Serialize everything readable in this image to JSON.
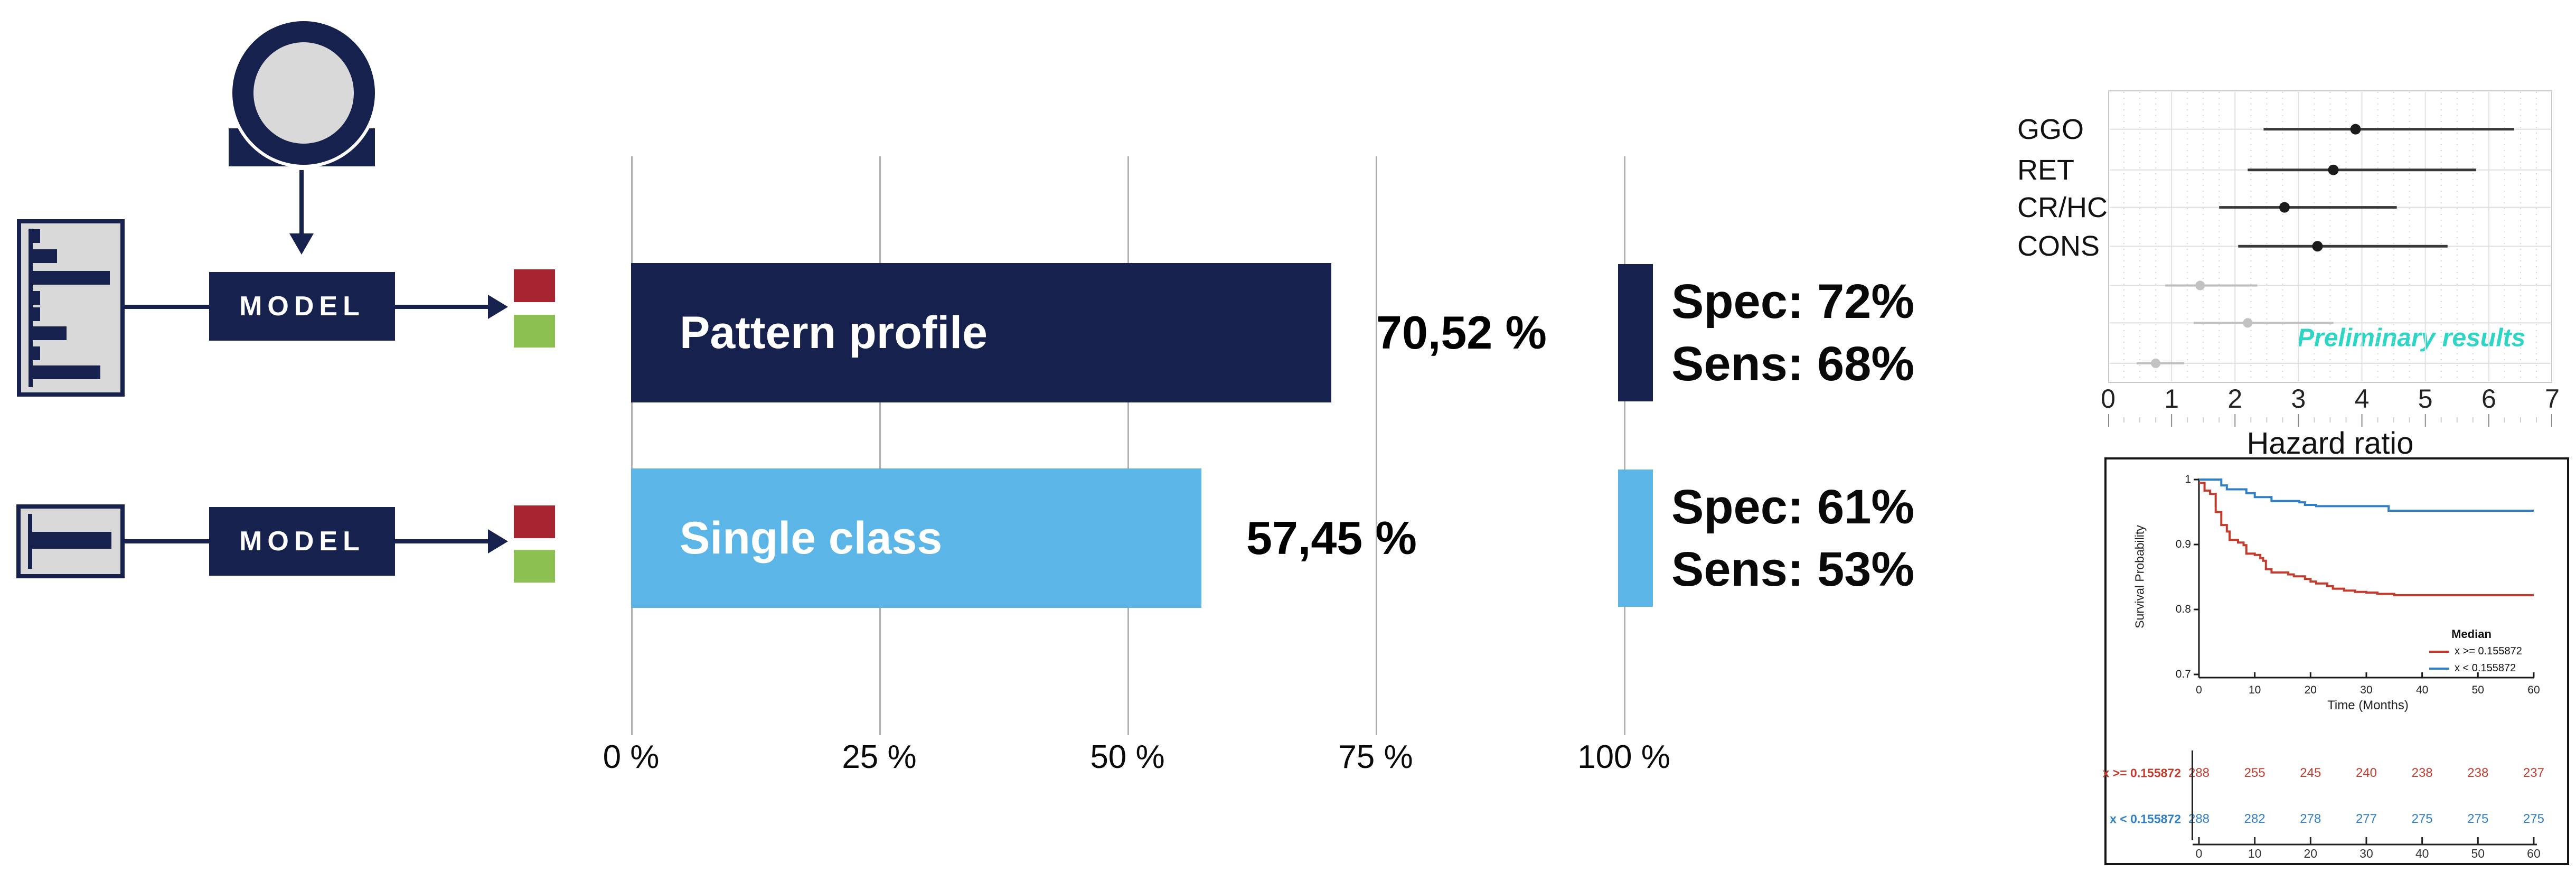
{
  "palette": {
    "navy": "#16214E",
    "icon_gray": "#D9D9D9",
    "bar_blue": "#5CB5E7",
    "class_red": "#A72430",
    "class_green": "#8CC152",
    "grid_gray": "#B0B0B0",
    "forest_black": "#383838",
    "forest_gray": "#BFBFBF",
    "km_red": "#C23B2C",
    "km_blue": "#2F7FC7",
    "watermark_cyan": "#2CD5C4"
  },
  "diagram": {
    "model_label": "MODEL",
    "histogram_icons": [
      {
        "bars": [
          [
            11,
            14
          ],
          [
            49,
            46
          ],
          [
            90,
            146
          ],
          [
            128,
            14
          ],
          [
            159,
            14
          ],
          [
            195,
            64
          ],
          [
            233,
            14
          ],
          [
            269,
            128
          ]
        ]
      },
      {
        "bars": [
          [
            44,
            150
          ]
        ]
      }
    ]
  },
  "chart_data": [
    {
      "type": "bar",
      "orientation": "horizontal",
      "title": "",
      "categories": [
        "Pattern profile",
        "Single class"
      ],
      "values": [
        70.52,
        57.45
      ],
      "value_labels": [
        "70,52 %",
        "57,45 %"
      ],
      "bar_colors": [
        "navy",
        "bar_blue"
      ],
      "stats": [
        {
          "spec": "Spec: 72%",
          "sens": "Sens: 68%"
        },
        {
          "spec": "Spec: 61%",
          "sens": "Sens: 53%"
        }
      ],
      "x_ticks": [
        "0 %",
        "25 %",
        "50 %",
        "75 %",
        "100 %"
      ],
      "xlim": [
        0,
        100
      ],
      "grid": true
    },
    {
      "type": "scatter",
      "subtype": "forest",
      "xlabel": "Hazard ratio",
      "xlim": [
        0,
        7
      ],
      "x_ticks": [
        "0",
        "1",
        "2",
        "3",
        "4",
        "5",
        "6",
        "7"
      ],
      "watermark": "Preliminary results",
      "rows": [
        {
          "label": "GGO",
          "est": 3.9,
          "lo": 2.45,
          "hi": 6.4,
          "tone": "black"
        },
        {
          "label": "RET",
          "est": 3.55,
          "lo": 2.2,
          "hi": 5.8,
          "tone": "black"
        },
        {
          "label": "CR/HC",
          "est": 2.78,
          "lo": 1.75,
          "hi": 4.55,
          "tone": "black"
        },
        {
          "label": "CONS",
          "est": 3.3,
          "lo": 2.05,
          "hi": 5.35,
          "tone": "black"
        },
        {
          "label": "",
          "est": 1.45,
          "lo": 0.9,
          "hi": 2.35,
          "tone": "gray"
        },
        {
          "label": "",
          "est": 2.2,
          "lo": 1.35,
          "hi": 3.55,
          "tone": "gray"
        },
        {
          "label": "",
          "est": 0.75,
          "lo": 0.45,
          "hi": 1.2,
          "tone": "gray"
        }
      ]
    },
    {
      "type": "line",
      "subtype": "kaplan-meier",
      "ylabel": "Survival Probability",
      "xlabel": "Time (Months)",
      "ylim": [
        0.7,
        1.0
      ],
      "xlim": [
        0,
        60
      ],
      "y_ticks": [
        "1",
        "0.9",
        "0.8",
        "0.7"
      ],
      "y_tick_values": [
        1.0,
        0.9,
        0.8,
        0.7
      ],
      "x_ticks": [
        "0",
        "10",
        "20",
        "30",
        "40",
        "50",
        "60"
      ],
      "x_tick_values": [
        0,
        10,
        20,
        30,
        40,
        50,
        60
      ],
      "legend": {
        "title": "Median",
        "entries": [
          {
            "label": "x >= 0.155872",
            "color": "km_red"
          },
          {
            "label": "x < 0.155872",
            "color": "km_blue"
          }
        ]
      },
      "series": [
        {
          "name": "x >= 0.155872",
          "color": "km_red",
          "points": [
            [
              0,
              0.995
            ],
            [
              1,
              0.983
            ],
            [
              2,
              0.978
            ],
            [
              3,
              0.95
            ],
            [
              4,
              0.93
            ],
            [
              5,
              0.92
            ],
            [
              5.5,
              0.907
            ],
            [
              7,
              0.903
            ],
            [
              8,
              0.899
            ],
            [
              8.5,
              0.886
            ],
            [
              10,
              0.884
            ],
            [
              11,
              0.879
            ],
            [
              11.5,
              0.875
            ],
            [
              12,
              0.862
            ],
            [
              13,
              0.857
            ],
            [
              16,
              0.854
            ],
            [
              17,
              0.851
            ],
            [
              19,
              0.847
            ],
            [
              20,
              0.843
            ],
            [
              21,
              0.84
            ],
            [
              23,
              0.836
            ],
            [
              24,
              0.832
            ],
            [
              26,
              0.829
            ],
            [
              28,
              0.827
            ],
            [
              30,
              0.826
            ],
            [
              32,
              0.824
            ],
            [
              35,
              0.822
            ],
            [
              60,
              0.822
            ]
          ]
        },
        {
          "name": "x < 0.155872",
          "color": "km_blue",
          "points": [
            [
              0,
              1.0
            ],
            [
              4,
              0.991
            ],
            [
              5,
              0.985
            ],
            [
              8.5,
              0.979
            ],
            [
              10,
              0.973
            ],
            [
              13,
              0.967
            ],
            [
              18,
              0.965
            ],
            [
              19,
              0.961
            ],
            [
              21,
              0.959
            ],
            [
              34,
              0.952
            ],
            [
              60,
              0.952
            ]
          ]
        }
      ],
      "risk_table": {
        "rows": [
          {
            "label": "x >= 0.155872",
            "color": "km_red",
            "values": [
              "288",
              "255",
              "245",
              "240",
              "238",
              "238",
              "237"
            ]
          },
          {
            "label": "x < 0.155872",
            "color": "km_blue",
            "values": [
              "288",
              "282",
              "278",
              "277",
              "275",
              "275",
              "275"
            ]
          }
        ],
        "x_ticks": [
          "0",
          "10",
          "20",
          "30",
          "40",
          "50",
          "60"
        ]
      }
    }
  ]
}
